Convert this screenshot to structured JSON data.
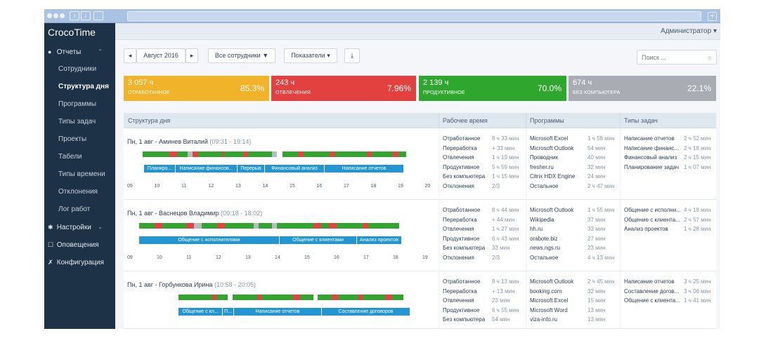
{
  "app": {
    "brand": "CrocoTime",
    "user": "Администратор"
  },
  "sidebar": {
    "reports": "Отчеты",
    "items": [
      "Сотрудники",
      "Структура дня",
      "Программы",
      "Типы задач",
      "Проекты",
      "Табели",
      "Типы времени",
      "Отклонения",
      "Лог работ"
    ],
    "active_index": 1,
    "settings": "Настройки",
    "notifications": "Оповещения",
    "configuration": "Конфигурация"
  },
  "toolbar": {
    "period": "Август 2016",
    "prev": "◂",
    "next": "▸",
    "employees": "Все сотрудники",
    "metrics": "Показатели",
    "export": "⤓",
    "search_placeholder": "Поиск ..."
  },
  "summary": [
    {
      "value": "3 057 ч",
      "label": "ОТРАБОТАННОЕ",
      "percent": "85.3%",
      "color": "#f0b32a"
    },
    {
      "value": "243 ч",
      "label": "ОТВЛЕЧЕНИЯ",
      "percent": "7.96%",
      "color": "#e3413f"
    },
    {
      "value": "2 139 ч",
      "label": "ПРОДУКТИВНОЕ",
      "percent": "70.0%",
      "color": "#2fa62e"
    },
    {
      "value": "674 ч",
      "label": "БЕЗ КОМПЬЮТЕРА",
      "percent": "22.1%",
      "color": "#a9adb3"
    }
  ],
  "columns": [
    "Структура дня",
    "Рабочее время",
    "Программы",
    "Типы задач"
  ],
  "colors": {
    "productive": "#34a32f",
    "distraction": "#e04545",
    "idle": "#b6bcc3",
    "task": "#2196d3"
  },
  "rows": [
    {
      "name": "Пн, 1 авг - Аминев Виталий",
      "time": "(09:31 - 19:14)",
      "hours": [
        "09",
        "10",
        "11",
        "12",
        "13",
        "14",
        "15",
        "16",
        "17",
        "18",
        "19",
        "20"
      ],
      "tasks": [
        "Планиро...",
        "Написание финансов...",
        "Перерыв",
        "Финансовый анализ",
        "Написание отчетов"
      ],
      "worktime": [
        [
          "Отработанное",
          "8 ч 33 мин"
        ],
        [
          "Переработка",
          "+ 33 мин"
        ],
        [
          "Отвлечения",
          "1 ч 19 мин"
        ],
        [
          "Продуктивное",
          "5 ч 59 мин"
        ],
        [
          "Без компьютера",
          "1 ч 15 мин"
        ],
        [
          "Отклонения",
          "2/3"
        ]
      ],
      "programs": [
        [
          "Microsoft Excel",
          "1 ч 58 мин"
        ],
        [
          "Microsoft Outlook",
          "54 мин"
        ],
        [
          "Проводник",
          "40 мин"
        ],
        [
          "fresher.ru",
          "32 мин"
        ],
        [
          "Citrix HDX Engine",
          "24 мин"
        ],
        [
          "Остальное",
          "2 ч 47 мин"
        ]
      ],
      "tasktypes": [
        [
          "Написание отчетов",
          "2 ч 52 мин"
        ],
        [
          "Написание финанс...",
          "2 ч 18 мин"
        ],
        [
          "Финансовый анализ",
          "2 ч 15 мин"
        ],
        [
          "Планирование задач",
          "1 ч 07 мин"
        ]
      ]
    },
    {
      "name": "Пн, 1 авг - Васнецов Владимир",
      "time": "(09:18 - 18:02)",
      "hours": [
        "09",
        "10",
        "11",
        "12",
        "13",
        "14",
        "15",
        "16",
        "17",
        "18",
        "19"
      ],
      "tasks": [
        "Общение с исполнителями",
        "Общение с клиентами",
        "Анализ проектов"
      ],
      "worktime": [
        [
          "Отработанное",
          "8 ч 44 мин"
        ],
        [
          "Переработка",
          "+ 44 мин"
        ],
        [
          "Отвлечения",
          "1 ч 27 мин"
        ],
        [
          "Продуктивное",
          "6 ч 43 мин"
        ],
        [
          "Без компьютера",
          "33 мин"
        ],
        [
          "Отклонения",
          "2/3"
        ]
      ],
      "programs": [
        [
          "Microsoft Outlook",
          "1 ч 55 мин"
        ],
        [
          "Wikipedia",
          "37 мин"
        ],
        [
          "hh.ru",
          "33 мин"
        ],
        [
          "orabote.biz",
          "27 мин"
        ],
        [
          "news.ngs.ru",
          "23 мин"
        ],
        [
          "Остальное",
          "4 ч 13 мин"
        ]
      ],
      "tasktypes": [
        [
          "Общение с исполни...",
          "4 ч 18 мин"
        ],
        [
          "Общение с клиента...",
          "2 ч 57 мин"
        ],
        [
          "Анализ проектов",
          "1 ч 28 мин"
        ]
      ]
    },
    {
      "name": "Пн, 1 авг - Горбункова Ирина",
      "time": "(10:58 - 20:05)",
      "hours": [],
      "tasks": [
        "Общение с кл...",
        "П...",
        "Написание отчетов",
        "Составление договоров"
      ],
      "worktime": [
        [
          "Отработанное",
          "8 ч 13 мин"
        ],
        [
          "Переработка",
          "+ 13 мин"
        ],
        [
          "Отвлечения",
          "23 мин"
        ],
        [
          "Продуктивное",
          "6 ч 55 мин"
        ],
        [
          "Без компьютера",
          "54 мин"
        ]
      ],
      "programs": [
        [
          "Microsoft Outlook",
          "2 ч 45 мин"
        ],
        [
          "booking.com",
          "32 мин"
        ],
        [
          "Microsoft Excel",
          "15 мин"
        ],
        [
          "Microsoft Word",
          "13 мин"
        ],
        [
          "viza-info.ru",
          "13 мин"
        ]
      ],
      "tasktypes": [
        [
          "Написание отчетов",
          "3 ч 25 мин"
        ],
        [
          "Составление догов...",
          "3 ч 06 мин"
        ],
        [
          "Общение с клиента...",
          "1 ч 41 мин"
        ]
      ]
    }
  ]
}
